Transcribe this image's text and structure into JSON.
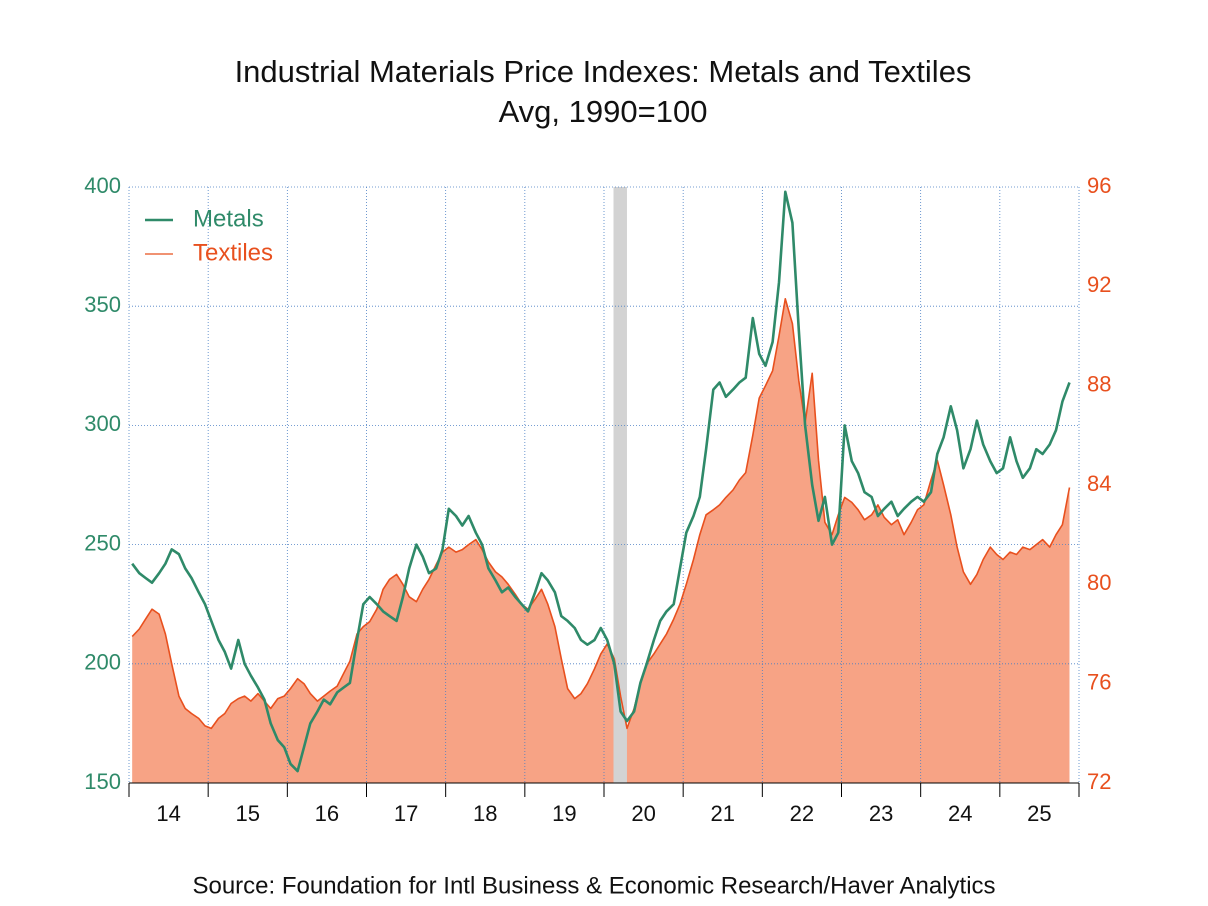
{
  "chart_data": {
    "type": "line",
    "title": "Industrial Materials Price Indexes: Metals and Textiles",
    "subtitle": "Avg, 1990=100",
    "source": "Source:  Foundation for Intl Business & Economic Research/Haver Analytics",
    "xlim": [
      2014,
      2026
    ],
    "xticks": [
      {
        "value": 2014.5,
        "label": "14"
      },
      {
        "value": 2015.5,
        "label": "15"
      },
      {
        "value": 2016.5,
        "label": "16"
      },
      {
        "value": 2017.5,
        "label": "17"
      },
      {
        "value": 2018.5,
        "label": "18"
      },
      {
        "value": 2019.5,
        "label": "19"
      },
      {
        "value": 2020.5,
        "label": "20"
      },
      {
        "value": 2021.5,
        "label": "21"
      },
      {
        "value": 2022.5,
        "label": "22"
      },
      {
        "value": 2023.5,
        "label": "23"
      },
      {
        "value": 2024.5,
        "label": "24"
      },
      {
        "value": 2025.5,
        "label": "25"
      }
    ],
    "x_tick_marks": [
      2014,
      2015,
      2016,
      2017,
      2018,
      2019,
      2020,
      2021,
      2022,
      2023,
      2024,
      2025,
      2026
    ],
    "ylim": [
      150,
      400
    ],
    "yticks": [
      150,
      200,
      250,
      300,
      350,
      400
    ],
    "y2lim": [
      72,
      96
    ],
    "y2ticks": [
      72,
      76,
      80,
      84,
      88,
      92,
      96
    ],
    "grid": true,
    "recession": [
      2020.12,
      2020.29
    ],
    "legend": "upper-left",
    "x": [
      2014.04,
      2014.13,
      2014.21,
      2014.29,
      2014.38,
      2014.46,
      2014.54,
      2014.63,
      2014.71,
      2014.79,
      2014.88,
      2014.96,
      2015.04,
      2015.13,
      2015.21,
      2015.29,
      2015.38,
      2015.46,
      2015.54,
      2015.63,
      2015.71,
      2015.79,
      2015.88,
      2015.96,
      2016.04,
      2016.13,
      2016.21,
      2016.29,
      2016.38,
      2016.46,
      2016.54,
      2016.63,
      2016.71,
      2016.79,
      2016.88,
      2016.96,
      2017.04,
      2017.13,
      2017.21,
      2017.29,
      2017.38,
      2017.46,
      2017.54,
      2017.63,
      2017.71,
      2017.79,
      2017.88,
      2017.96,
      2018.04,
      2018.13,
      2018.21,
      2018.29,
      2018.38,
      2018.46,
      2018.54,
      2018.63,
      2018.71,
      2018.79,
      2018.88,
      2018.96,
      2019.04,
      2019.13,
      2019.21,
      2019.29,
      2019.38,
      2019.46,
      2019.54,
      2019.63,
      2019.71,
      2019.79,
      2019.88,
      2019.96,
      2020.04,
      2020.13,
      2020.21,
      2020.29,
      2020.38,
      2020.46,
      2020.54,
      2020.63,
      2020.71,
      2020.79,
      2020.88,
      2020.96,
      2021.04,
      2021.13,
      2021.21,
      2021.29,
      2021.38,
      2021.46,
      2021.54,
      2021.63,
      2021.71,
      2021.79,
      2021.88,
      2021.96,
      2022.04,
      2022.13,
      2022.21,
      2022.29,
      2022.38,
      2022.46,
      2022.54,
      2022.63,
      2022.71,
      2022.79,
      2022.88,
      2022.96,
      2023.04,
      2023.13,
      2023.21,
      2023.29,
      2023.38,
      2023.46,
      2023.54,
      2023.63,
      2023.71,
      2023.79,
      2023.88,
      2023.96,
      2024.04,
      2024.13,
      2024.21,
      2024.29,
      2024.38,
      2024.46,
      2024.54,
      2024.63,
      2024.71,
      2024.79,
      2024.88,
      2024.96,
      2025.04,
      2025.13,
      2025.21,
      2025.29,
      2025.38,
      2025.46,
      2025.54,
      2025.63,
      2025.71,
      2025.79,
      2025.88
    ],
    "series": [
      {
        "name": "Textiles",
        "color": "#e8501e",
        "fill": "#f7a385",
        "axis": "y2",
        "area": true,
        "values": [
          77.9,
          78.2,
          78.6,
          79.0,
          78.8,
          78.0,
          76.8,
          75.5,
          75.0,
          74.8,
          74.6,
          74.3,
          74.2,
          74.6,
          74.8,
          75.2,
          75.4,
          75.5,
          75.3,
          75.6,
          75.3,
          75.0,
          75.4,
          75.5,
          75.8,
          76.2,
          76.0,
          75.6,
          75.3,
          75.5,
          75.7,
          75.9,
          76.4,
          76.9,
          78.0,
          78.3,
          78.5,
          79.0,
          79.8,
          80.2,
          80.4,
          80.0,
          79.5,
          79.3,
          79.8,
          80.2,
          80.8,
          81.3,
          81.5,
          81.3,
          81.4,
          81.6,
          81.8,
          81.4,
          80.9,
          80.5,
          80.3,
          80.0,
          79.6,
          79.2,
          79.0,
          79.4,
          79.8,
          79.2,
          78.3,
          77.0,
          75.8,
          75.4,
          75.6,
          76.0,
          76.6,
          77.2,
          77.6,
          77.0,
          75.5,
          74.2,
          75.0,
          76.0,
          76.8,
          77.2,
          77.6,
          78.0,
          78.6,
          79.2,
          80.0,
          81.0,
          82.0,
          82.8,
          83.0,
          83.2,
          83.5,
          83.8,
          84.2,
          84.5,
          86.0,
          87.5,
          88.0,
          88.6,
          90.0,
          91.5,
          90.5,
          88.2,
          86.5,
          88.5,
          85.0,
          82.5,
          82.0,
          82.8,
          83.5,
          83.3,
          83.0,
          82.6,
          82.8,
          83.2,
          82.7,
          82.4,
          82.6,
          82.0,
          82.5,
          83.0,
          83.2,
          84.2,
          85.0,
          84.0,
          82.8,
          81.5,
          80.5,
          80.0,
          80.4,
          81.0,
          81.5,
          81.2,
          81.0,
          81.3,
          81.2,
          81.5,
          81.4,
          81.6,
          81.8,
          81.5,
          82.0,
          82.4,
          83.9
        ]
      },
      {
        "name": "Metals",
        "color": "#2f8a69",
        "axis": "y",
        "values": [
          242,
          238,
          236,
          234,
          238,
          242,
          248,
          246,
          240,
          236,
          230,
          225,
          218,
          210,
          205,
          198,
          210,
          200,
          195,
          190,
          185,
          175,
          168,
          165,
          158,
          155,
          165,
          175,
          180,
          185,
          183,
          188,
          190,
          192,
          210,
          225,
          228,
          225,
          222,
          220,
          218,
          228,
          240,
          250,
          245,
          238,
          240,
          248,
          265,
          262,
          258,
          262,
          255,
          250,
          240,
          235,
          230,
          232,
          228,
          225,
          222,
          230,
          238,
          235,
          230,
          220,
          218,
          215,
          210,
          208,
          210,
          215,
          210,
          200,
          180,
          176,
          180,
          192,
          200,
          210,
          218,
          222,
          225,
          240,
          255,
          262,
          270,
          290,
          315,
          318,
          312,
          315,
          318,
          320,
          345,
          330,
          325,
          335,
          360,
          398,
          385,
          340,
          300,
          275,
          260,
          270,
          250,
          255,
          300,
          285,
          280,
          272,
          270,
          262,
          265,
          268,
          262,
          265,
          268,
          270,
          268,
          272,
          288,
          295,
          308,
          298,
          282,
          290,
          302,
          292,
          285,
          280,
          282,
          295,
          285,
          278,
          282,
          290,
          288,
          292,
          298,
          310,
          318
        ]
      }
    ]
  }
}
